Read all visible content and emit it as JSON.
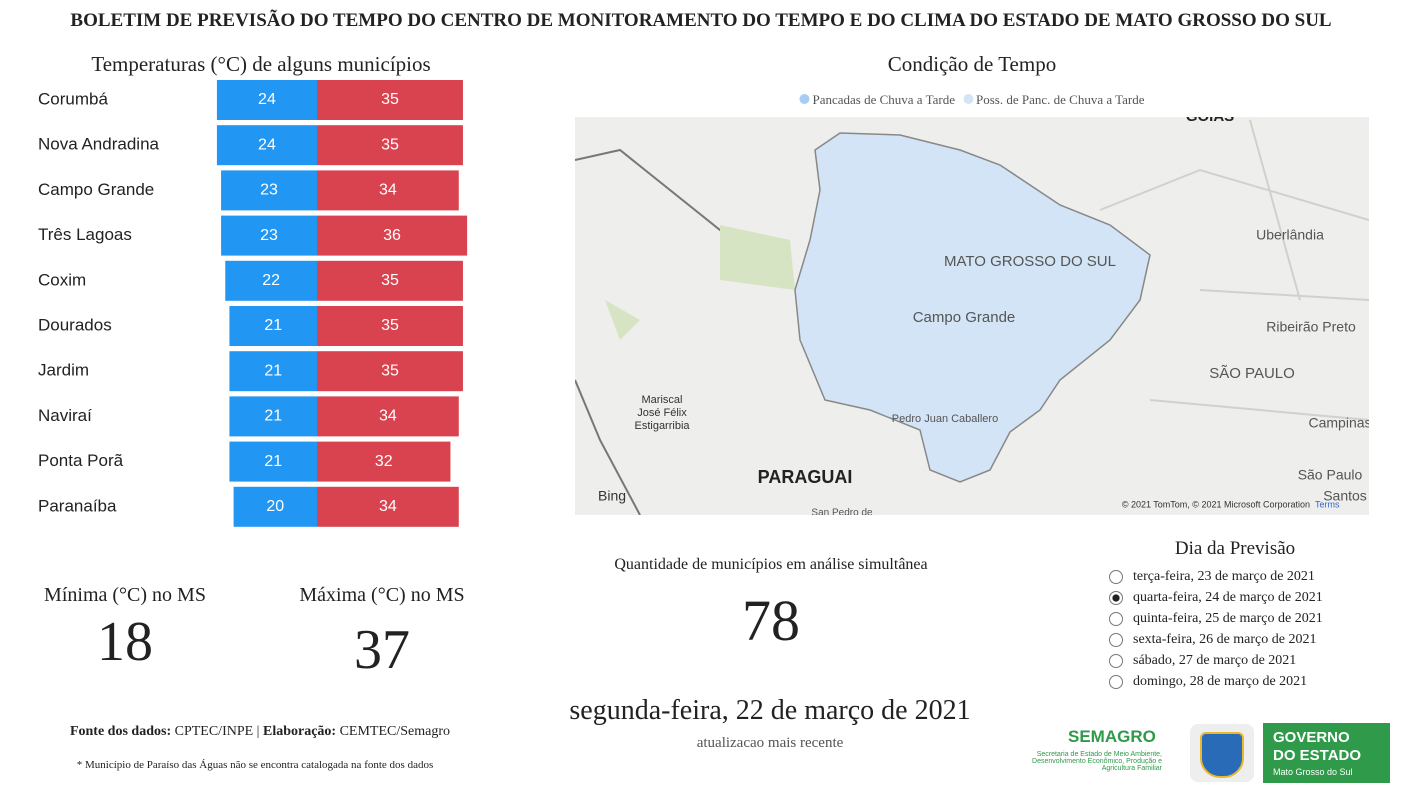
{
  "header": {
    "title": "BOLETIM DE PREVISÃO DO TEMPO DO CENTRO DE MONITORAMENTO DO TEMPO E DO CLIMA DO ESTADO DE MATO GROSSO DO SUL"
  },
  "chart_data": {
    "type": "diverging-bar",
    "title": "Temperaturas (°C) de alguns municípios",
    "categories": [
      "Corumbá",
      "Nova Andradina",
      "Campo Grande",
      "Três Lagoas",
      "Coxim",
      "Dourados",
      "Jardim",
      "Naviraí",
      "Ponta Porã",
      "Paranaíba"
    ],
    "series": [
      {
        "color": "#2196f3",
        "values": [
          24,
          24,
          23,
          23,
          22,
          21,
          21,
          21,
          21,
          20
        ]
      },
      {
        "color": "#d9434f",
        "values": [
          35,
          35,
          34,
          36,
          35,
          35,
          35,
          34,
          32,
          34
        ]
      }
    ]
  },
  "kpis": {
    "min": {
      "label": "Mínima (°C) no MS",
      "value": "18"
    },
    "max": {
      "label": "Máxima (°C) no MS",
      "value": "37"
    },
    "count": {
      "label": "Quantidade de municípios em análise simultânea",
      "value": "78"
    }
  },
  "map": {
    "title": "Condição de Tempo",
    "legend": [
      {
        "label": "Pancadas de Chuva a Tarde",
        "color": "#a9cdf2"
      },
      {
        "label": "Poss. de Panc. de Chuva a Tarde",
        "color": "#d3e4f6"
      }
    ],
    "places": [
      "GOIÁS",
      "MATO GROSSO DO SUL",
      "Campo Grande",
      "Uberlândia",
      "Ribeirão Preto",
      "SÃO PAULO",
      "Campinas",
      "São Paulo",
      "Santos",
      "PARAGUAI",
      "Mariscal José Félix Estigarribia",
      "Pedro Juan Caballero",
      "San Pedro de"
    ],
    "brand": "Bing",
    "attribution": "© 2021 TomTom, © 2021 Microsoft Corporation",
    "terms": "Terms"
  },
  "forecast": {
    "title": "Dia da Previsão",
    "selected": 1,
    "options": [
      "terça-feira, 23 de março de 2021",
      "quarta-feira, 24 de março de 2021",
      "quinta-feira, 25 de março de 2021",
      "sexta-feira, 26 de março de 2021",
      "sábado, 27 de março de 2021",
      "domingo, 28 de março de 2021"
    ]
  },
  "update": {
    "date": "segunda-feira, 22 de março de 2021",
    "label": "atualizacao mais recente"
  },
  "footer": {
    "source_label": "Fonte dos dados:",
    "source": "CPTEC/INPE |",
    "made_label": "Elaboração:",
    "made": "CEMTEC/Semagro",
    "note": "* Município de Paraíso das Águas não se encontra catalogada na fonte dos dados"
  },
  "logos": {
    "semagro": "SEMAGRO",
    "semagro_sub": "Secretaria de Estado de Meio Ambiente, Desenvolvimento Econômico, Produção e Agricultura Familiar",
    "gov1": "GOVERNO",
    "gov2": "DO ESTADO",
    "gov3": "Mato Grosso do Sul"
  }
}
